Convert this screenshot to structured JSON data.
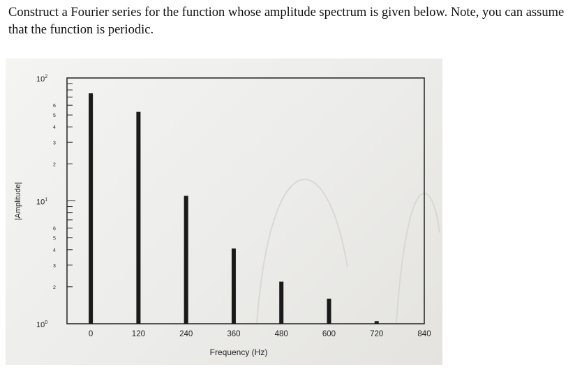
{
  "question": {
    "text": "Construct a Fourier series for the function whose amplitude spectrum is given below. Note, you can assume that the function is periodic."
  },
  "chart_data": {
    "type": "bar",
    "xlabel": "Frequency (Hz)",
    "ylabel": "|Amplitude|",
    "y_scale": "log",
    "ylim": [
      1,
      100
    ],
    "xlim": [
      -60,
      840
    ],
    "x": [
      0,
      120,
      240,
      360,
      480,
      600,
      720
    ],
    "values": [
      75,
      53,
      11,
      4.1,
      2.2,
      1.6,
      1.05
    ],
    "x_ticks": [
      "0",
      "120",
      "240",
      "360",
      "480",
      "600",
      "720",
      "840"
    ],
    "y_ticks": [
      {
        "value": 1,
        "label": "10",
        "exp": "0"
      },
      {
        "value": 10,
        "label": "10",
        "exp": "1"
      },
      {
        "value": 100,
        "label": "10",
        "exp": "2"
      }
    ],
    "minor_tick_labels": [
      "2",
      "3",
      "4",
      "5",
      "6"
    ],
    "grid": false,
    "bar_color": "#1a1a1a"
  }
}
